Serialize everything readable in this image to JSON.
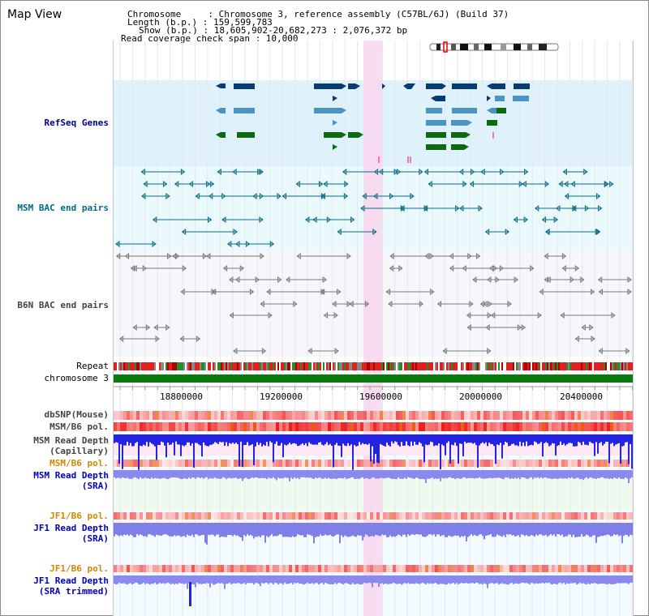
{
  "view_title": "Map View",
  "info": {
    "chromosome_line": "Chromosome     : Chromosome 3, reference assembly (C57BL/6J) (Build 37)",
    "length_line": "Length (b.p.) : 159,599,783",
    "show_line": "Show (b.p.) : 18,605,902-20,682,273 : 2,076,372 bp",
    "coverage_line": "Read coverage check span : 10,000"
  },
  "tracks": {
    "refseq": "RefSeq Genes",
    "msm_bac": "MSM BAC end pairs",
    "b6n_bac": "B6N BAC end pairs",
    "repeat": "Repeat",
    "chromosome": "chromosome 3",
    "dbsnp": "dbSNP(Mouse)",
    "msm_pol": "MSM/B6 pol.",
    "msm_depth_cap_1": "MSM Read Depth",
    "msm_depth_cap_2": "(Capillary)",
    "msm_pol_2": "MSM/B6 pol.",
    "msm_depth_sra_1": "MSM Read Depth",
    "msm_depth_sra_2": "(SRA)",
    "jf1_pol": "JF1/B6 pol.",
    "jf1_depth_sra_1": "JF1 Read Depth",
    "jf1_depth_sra_2": "(SRA)",
    "jf1_pol_2": "JF1/B6 pol.",
    "jf1_depth_trim_1": "JF1 Read Depth",
    "jf1_depth_trim_2": "(SRA trimmed)"
  },
  "axis": {
    "ticks": [
      "18800000",
      "19200000",
      "19600000",
      "20000000",
      "20400000"
    ]
  },
  "colors": {
    "refseq_bg": "#dff2fb",
    "msm_bg": "#eafafc",
    "b6n_bg": "#f6f6fb",
    "highlight": "#f9d6ef",
    "gene_navy": "#073b76",
    "gene_steel": "#4b93c2",
    "gene_green": "#0c6b10",
    "msm_feature": "#0b6a84",
    "b6n_feature": "#7a7a7a",
    "label_navy": "#000099",
    "label_teal": "#006b84",
    "label_gray": "#444444",
    "label_orange": "#cc8800",
    "label_blue": "#0000bb"
  }
}
